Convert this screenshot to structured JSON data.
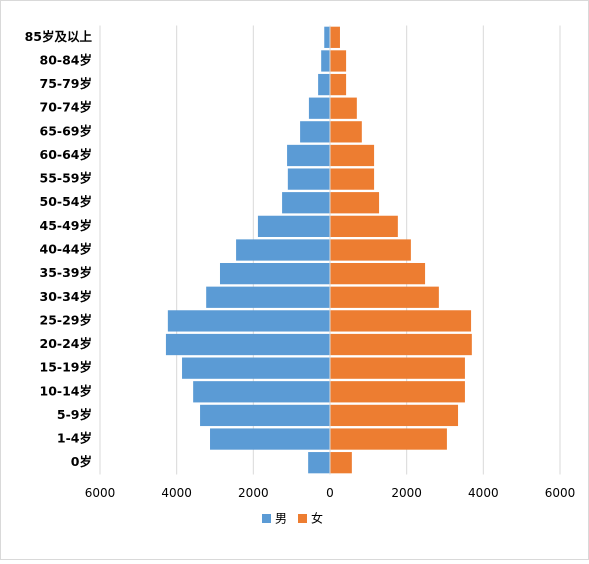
{
  "chart_data": {
    "type": "pyramid",
    "categories": [
      "85岁及以上",
      "80-84岁",
      "75-79岁",
      "70-74岁",
      "65-69岁",
      "60-64岁",
      "55-59岁",
      "50-54岁",
      "45-49岁",
      "40-44岁",
      "35-39岁",
      "30-34岁",
      "25-29岁",
      "20-24岁",
      "15-19岁",
      "10-14岁",
      "5-9岁",
      "1-4岁",
      "0岁"
    ],
    "series": [
      {
        "name": "男",
        "color": "#5b9bd5",
        "values": [
          -150,
          -230,
          -310,
          -550,
          -780,
          -1120,
          -1100,
          -1250,
          -1880,
          -2450,
          -2870,
          -3230,
          -4230,
          -4280,
          -3860,
          -3570,
          -3390,
          -3130,
          -570
        ]
      },
      {
        "name": "女",
        "color": "#ed7d31",
        "values": [
          260,
          420,
          420,
          700,
          830,
          1150,
          1150,
          1280,
          1770,
          2110,
          2480,
          2840,
          3680,
          3700,
          3520,
          3520,
          3340,
          3050,
          570
        ]
      }
    ],
    "xlim": [
      -6000,
      6000
    ],
    "xticks": [
      {
        "value": -6000,
        "label": "6000"
      },
      {
        "value": -4000,
        "label": "4000"
      },
      {
        "value": -2000,
        "label": "2000"
      },
      0,
      2000,
      4000,
      6000
    ],
    "grid": true,
    "legend": "bottom"
  }
}
